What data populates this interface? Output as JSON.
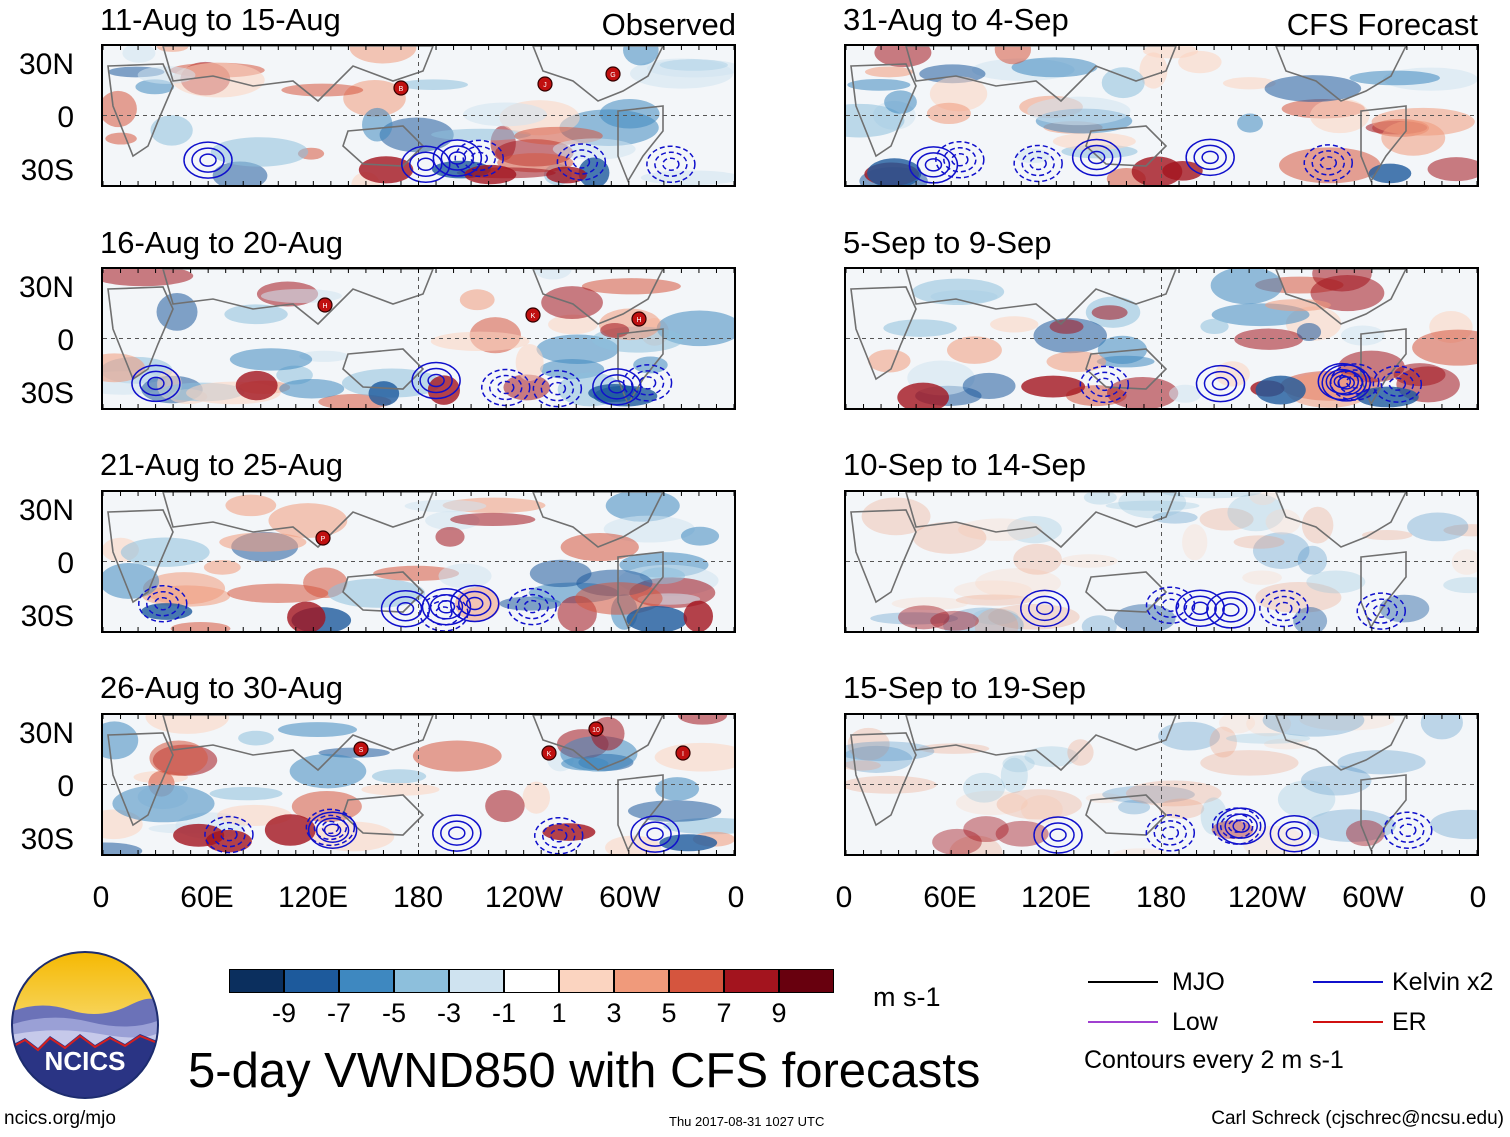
{
  "observed_label": "Observed",
  "forecast_label": "CFS Forecast",
  "panels_left": [
    {
      "title": "11-Aug to 15-Aug",
      "storms": [
        "B",
        "J",
        "G"
      ]
    },
    {
      "title": "16-Aug to 20-Aug",
      "storms": [
        "H",
        "K",
        "H"
      ]
    },
    {
      "title": "21-Aug to 25-Aug",
      "storms": [
        "P"
      ]
    },
    {
      "title": "26-Aug to 30-Aug",
      "storms": [
        "S",
        "K",
        "10",
        "I"
      ]
    }
  ],
  "panels_right": [
    {
      "title": "31-Aug to 4-Sep"
    },
    {
      "title": "5-Sep to 9-Sep"
    },
    {
      "title": "10-Sep to 14-Sep"
    },
    {
      "title": "15-Sep to 19-Sep"
    }
  ],
  "lat_labels": [
    "30N",
    "0",
    "30S"
  ],
  "lon_labels": [
    "0",
    "60E",
    "120E",
    "180",
    "120W",
    "60W",
    "0"
  ],
  "colorbar": {
    "ticks": [
      "-9",
      "-7",
      "-5",
      "-3",
      "-1",
      "1",
      "3",
      "5",
      "7",
      "9"
    ],
    "colors": [
      "#0b2f5e",
      "#1d5a9c",
      "#3e88c0",
      "#8dbfdc",
      "#cfe3f0",
      "#ffffff",
      "#fbd4c0",
      "#f09a7b",
      "#d5553e",
      "#a3141e",
      "#68000e"
    ],
    "units": "m s-1"
  },
  "legend": {
    "items": [
      {
        "label": "MJO",
        "color": "#000000"
      },
      {
        "label": "Low",
        "color": "#a040d0"
      },
      {
        "label": "Kelvin x2",
        "color": "#1010cc"
      },
      {
        "label": "ER",
        "color": "#d01010"
      }
    ],
    "note": "Contours every 2 m s-1"
  },
  "logo_text": "NCICS",
  "main_title": "5-day VWND850 with CFS forecasts",
  "footer": {
    "left": "ncics.org/mjo",
    "center": "Thu 2017-08-31 1027 UTC",
    "right": "Carl Schreck (cjschrec@ncsu.edu)"
  }
}
